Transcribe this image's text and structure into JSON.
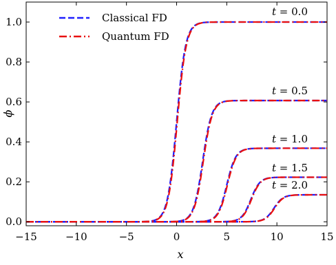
{
  "chart_data": {
    "type": "line",
    "xlabel": "x",
    "ylabel": "ϕ",
    "xlim": [
      -15,
      15
    ],
    "ylim": [
      -0.02,
      1.1
    ],
    "xticks": [
      -15,
      -10,
      -5,
      0,
      5,
      10,
      15
    ],
    "xtick_labels": [
      "−15",
      "−10",
      "−5",
      "0",
      "5",
      "10",
      "15"
    ],
    "yticks": [
      0.0,
      0.2,
      0.4,
      0.6,
      0.8,
      1.0
    ],
    "ytick_labels": [
      "0.0",
      "0.2",
      "0.4",
      "0.6",
      "0.8",
      "1.0"
    ],
    "grid": false,
    "legend_position": "top-left",
    "legend": [
      {
        "label": "Classical FD",
        "style": "dashed",
        "color": "#1f1fff"
      },
      {
        "label": "Quantum FD",
        "style": "dashdot",
        "color": "#e81010"
      }
    ],
    "curves": [
      {
        "t_label": "t = 0.0",
        "center": 0.0,
        "amplitude": 1.0,
        "width": 0.45
      },
      {
        "t_label": "t = 0.5",
        "center": 2.6,
        "amplitude": 0.607,
        "width": 0.45
      },
      {
        "t_label": "t = 1.0",
        "center": 5.0,
        "amplitude": 0.368,
        "width": 0.45
      },
      {
        "t_label": "t = 1.5",
        "center": 7.4,
        "amplitude": 0.223,
        "width": 0.45
      },
      {
        "t_label": "t = 2.0",
        "center": 9.7,
        "amplitude": 0.135,
        "width": 0.45
      }
    ],
    "series": [
      {
        "name": "Classical FD",
        "color": "#1f1fff",
        "dash": "9,4"
      },
      {
        "name": "Quantum FD",
        "color": "#e81010",
        "dash": "11,4,2,4"
      }
    ]
  }
}
